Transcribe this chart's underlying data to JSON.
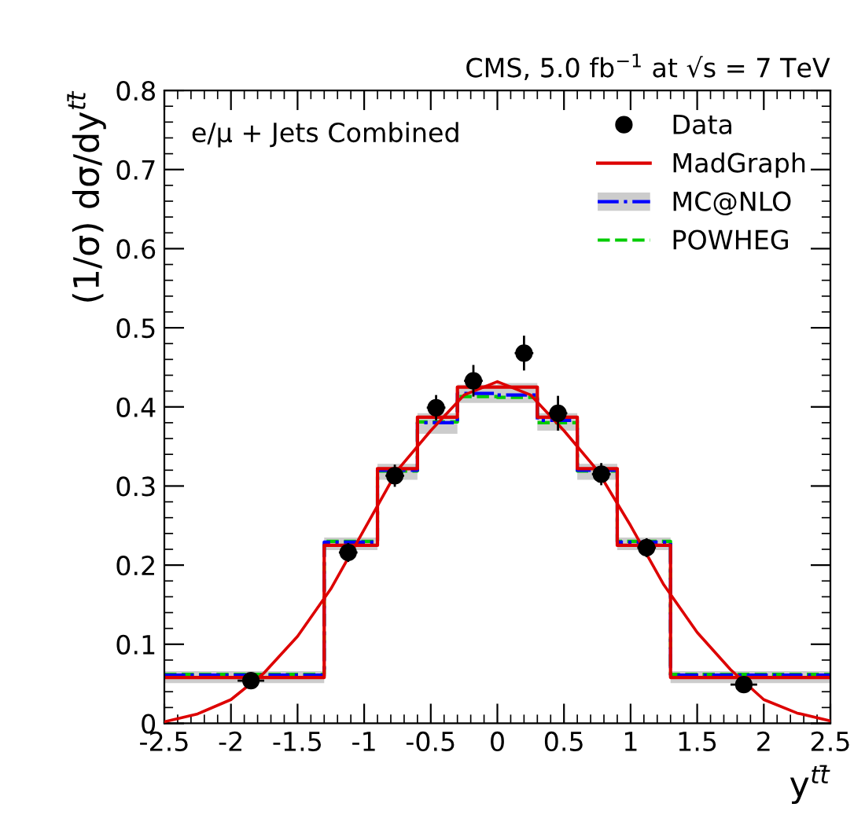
{
  "chart_data": {
    "type": "step",
    "title": "CMS, 5.0 fb$^{−1}$ at √s = 7 TeV",
    "annotations": [
      "e/μ + Jets Combined"
    ],
    "xlabel": "y$^{tt̄}$",
    "ylabel": "(1/σ) dσ/dy$^{tt̄}$",
    "xlim": [
      -2.5,
      2.5
    ],
    "xticks": [
      -2.5,
      -2,
      -1.5,
      -1,
      -0.5,
      0,
      0.5,
      1,
      1.5,
      2,
      2.5
    ],
    "ylim": [
      0,
      0.8
    ],
    "yticks": [
      0,
      0.1,
      0.2,
      0.3,
      0.4,
      0.5,
      0.6,
      0.7,
      0.8
    ],
    "legend": "top right",
    "series": [
      {
        "name": "MadGraph",
        "color": "#dd0000",
        "line_style": "solid",
        "x": [
          -2.5,
          -1.3,
          -0.9,
          -0.6,
          -0.3,
          0,
          0.3,
          0.6,
          0.9,
          1.3,
          2.5
        ],
        "values": [
          0.058,
          0.225,
          0.322,
          0.387,
          0.425,
          0.425,
          0.387,
          0.322,
          0.225,
          0.058,
          0.058
        ]
      },
      {
        "name": "MC@NLO",
        "color": "#0000ff",
        "line_style": "dashdot",
        "x": [
          -2.5,
          -1.3,
          -0.9,
          -0.6,
          -0.3,
          0,
          0.3,
          0.6,
          0.9,
          1.3,
          2.5
        ],
        "values": [
          0.061,
          0.229,
          0.32,
          0.38,
          0.417,
          0.415,
          0.383,
          0.32,
          0.229,
          0.061,
          0.061
        ],
        "lower": [
          0.051,
          0.219,
          0.308,
          0.366,
          0.405,
          0.405,
          0.37,
          0.308,
          0.219,
          0.051,
          0.051
        ],
        "upper": [
          0.066,
          0.235,
          0.328,
          0.392,
          0.428,
          0.43,
          0.392,
          0.328,
          0.235,
          0.066,
          0.066
        ]
      },
      {
        "name": "POWHEG",
        "color": "#00cc00",
        "line_style": "dashed",
        "x": [
          -2.5,
          -1.3,
          -0.9,
          -0.6,
          -0.3,
          0,
          0.3,
          0.6,
          0.9,
          1.3,
          2.5
        ],
        "values": [
          0.062,
          0.23,
          0.319,
          0.381,
          0.413,
          0.412,
          0.38,
          0.319,
          0.23,
          0.062,
          0.062
        ]
      },
      {
        "type": "line",
        "color": "#dd0000",
        "line_style": "solid",
        "x": [
          -2.5,
          -2.25,
          -2,
          -1.75,
          -1.5,
          -1.25,
          -1,
          -0.75,
          -0.5,
          -0.25,
          0,
          0.25,
          0.5,
          0.75,
          1,
          1.25,
          1.5,
          1.75,
          2,
          2.25,
          2.5
        ],
        "values": [
          0.002,
          0.012,
          0.03,
          0.064,
          0.11,
          0.17,
          0.245,
          0.32,
          0.37,
          0.415,
          0.432,
          0.415,
          0.37,
          0.32,
          0.25,
          0.175,
          0.115,
          0.068,
          0.03,
          0.013,
          0.003
        ]
      },
      {
        "name": "Data",
        "type": "scatter",
        "color": "#000000",
        "marker": "circle",
        "x": [
          -1.85,
          -1.12,
          -0.77,
          -0.46,
          -0.18,
          0.2,
          0.455,
          0.78,
          1.12,
          1.85
        ],
        "values": [
          0.054,
          0.216,
          0.313,
          0.399,
          0.433,
          0.468,
          0.392,
          0.315,
          0.222,
          0.049
        ],
        "errors": [
          0.006,
          0.012,
          0.014,
          0.016,
          0.02,
          0.022,
          0.022,
          0.014,
          0.012,
          0.006
        ],
        "xerrors": [
          0.1,
          0.07,
          0.07,
          0.07,
          0.07,
          0.07,
          0.07,
          0.07,
          0.07,
          0.1
        ]
      }
    ]
  }
}
